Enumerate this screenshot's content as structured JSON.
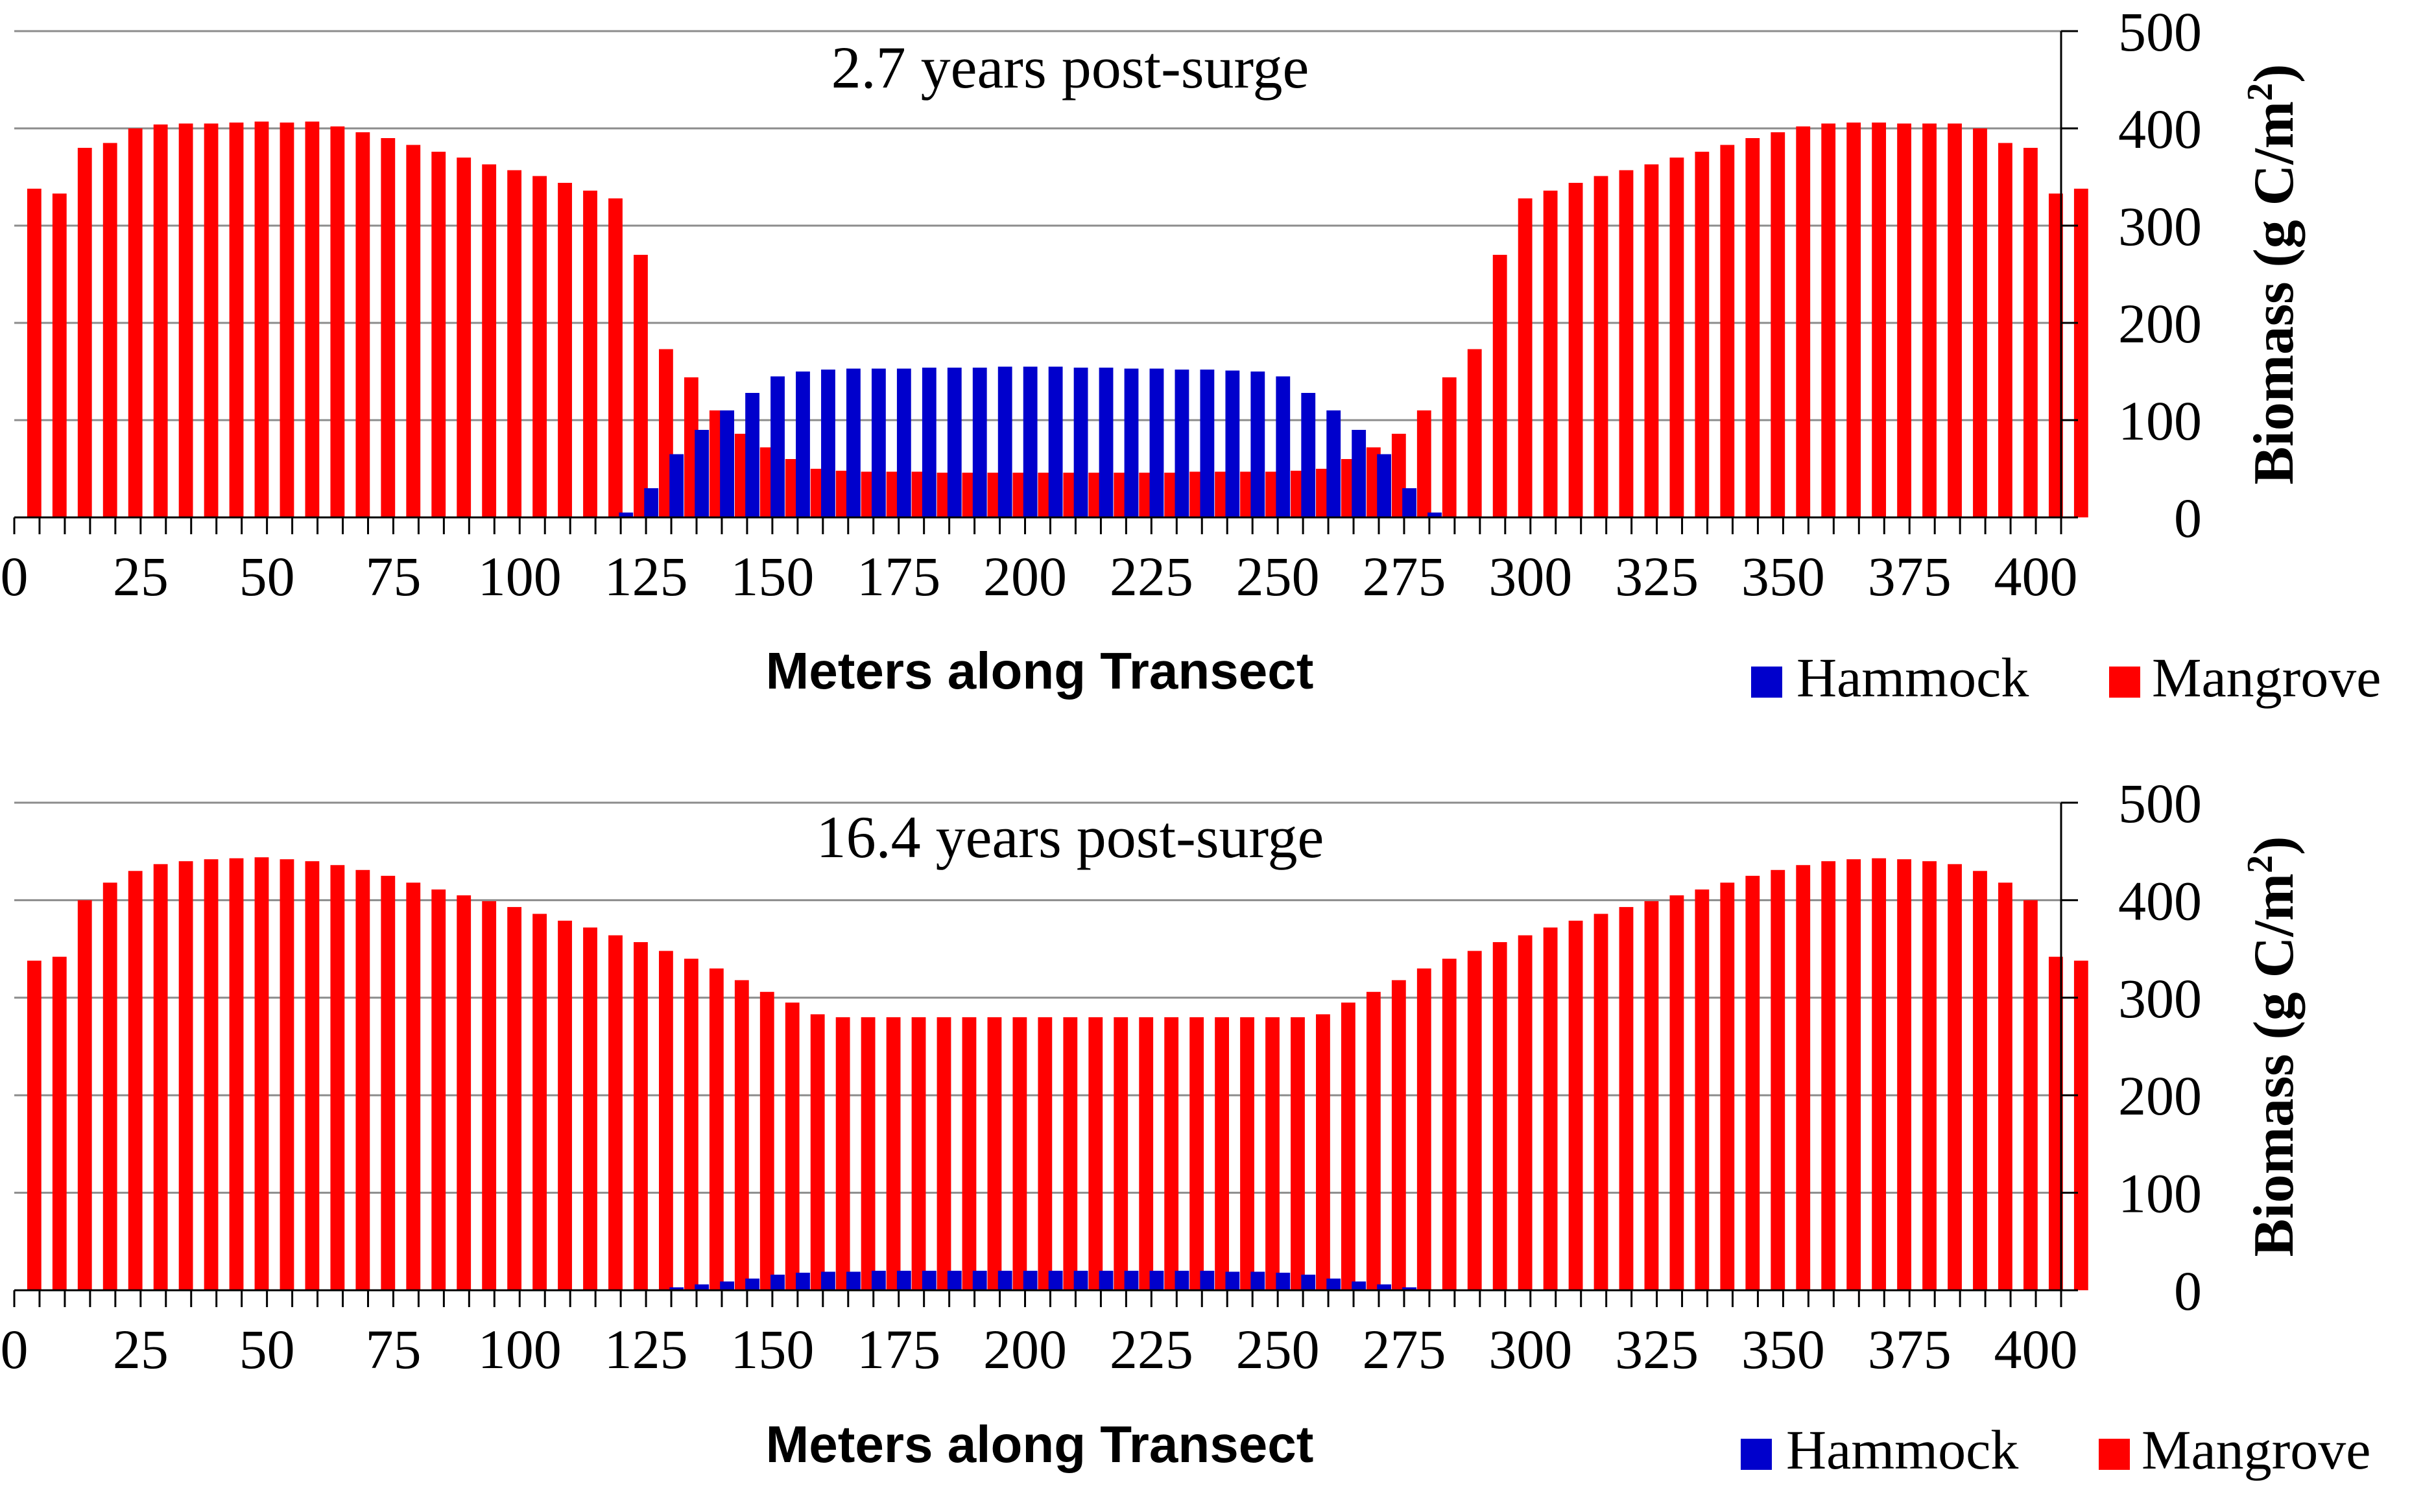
{
  "colors": {
    "hammock": "#0000CC",
    "mangrove": "#FF0000",
    "grid": "#8C8C8C",
    "axis": "#000000"
  },
  "chart_data": [
    {
      "type": "bar",
      "title": "2.7 years post-surge",
      "xlabel": "Meters along Transect",
      "ylabel": "Biomass (g C/m²)",
      "ylabel_main": "Biomass (g C/m",
      "ylabel_sup": "2",
      "ylabel_end": ")",
      "ylim": [
        0,
        500
      ],
      "y_ticks": [
        0,
        100,
        200,
        300,
        400,
        500
      ],
      "x_ticks": [
        0,
        25,
        50,
        75,
        100,
        125,
        150,
        175,
        200,
        225,
        250,
        275,
        300,
        325,
        350,
        375,
        400
      ],
      "xlim": [
        0,
        405
      ],
      "bar_spacing_m": 5,
      "x_start_m": 2.5,
      "grid": true,
      "legend_position": "bottom-right",
      "series": [
        {
          "name": "Hammock",
          "values": [
            0,
            0,
            0,
            0,
            0,
            0,
            0,
            0,
            0,
            0,
            0,
            0,
            0,
            0,
            0,
            0,
            0,
            0,
            0,
            0,
            0,
            0,
            0,
            0,
            5,
            30,
            65,
            90,
            110,
            128,
            145,
            150,
            152,
            153,
            153,
            153,
            154,
            154,
            154,
            155,
            155,
            155,
            154,
            154,
            153,
            153,
            152,
            152,
            151,
            150,
            145,
            128,
            110,
            90,
            65,
            30,
            5,
            0,
            0,
            0,
            0,
            0,
            0,
            0,
            0,
            0,
            0,
            0,
            0,
            0,
            0,
            0,
            0,
            0,
            0,
            0,
            0,
            0,
            0,
            0,
            0,
            0
          ]
        },
        {
          "name": "Mangrove",
          "values": [
            338,
            333,
            380,
            385,
            400,
            404,
            405,
            405,
            406,
            407,
            406,
            407,
            402,
            396,
            390,
            383,
            376,
            370,
            363,
            357,
            351,
            344,
            336,
            328,
            270,
            173,
            144,
            110,
            86,
            72,
            60,
            50,
            48,
            47,
            47,
            47,
            46,
            46,
            46,
            46,
            46,
            46,
            46,
            46,
            46,
            46,
            47,
            47,
            47,
            47,
            48,
            50,
            60,
            72,
            86,
            110,
            144,
            173,
            270,
            328,
            336,
            344,
            351,
            357,
            363,
            370,
            376,
            383,
            390,
            396,
            402,
            405,
            406,
            406,
            405,
            405,
            405,
            400,
            385,
            380,
            333,
            338
          ]
        }
      ]
    },
    {
      "type": "bar",
      "title": "16.4 years post-surge",
      "xlabel": "Meters along Transect",
      "ylabel": "Biomass (g C/m²)",
      "ylabel_main": "Biomass (g C/m",
      "ylabel_sup": "2",
      "ylabel_end": ")",
      "ylim": [
        0,
        500
      ],
      "y_ticks": [
        0,
        100,
        200,
        300,
        400,
        500
      ],
      "x_ticks": [
        0,
        25,
        50,
        75,
        100,
        125,
        150,
        175,
        200,
        225,
        250,
        275,
        300,
        325,
        350,
        375,
        400
      ],
      "xlim": [
        0,
        405
      ],
      "bar_spacing_m": 5,
      "x_start_m": 2.5,
      "grid": true,
      "legend_position": "bottom-right",
      "series": [
        {
          "name": "Hammock",
          "values": [
            0,
            0,
            0,
            0,
            0,
            0,
            0,
            0,
            0,
            0,
            0,
            0,
            0,
            0,
            0,
            0,
            0,
            0,
            0,
            0,
            0,
            0,
            0,
            0,
            0,
            0,
            3,
            6,
            9,
            12,
            16,
            18,
            19,
            19,
            20,
            20,
            20,
            20,
            20,
            20,
            20,
            20,
            20,
            20,
            20,
            20,
            20,
            20,
            19,
            19,
            18,
            16,
            12,
            9,
            6,
            3,
            0,
            0,
            0,
            0,
            0,
            0,
            0,
            0,
            0,
            0,
            0,
            0,
            0,
            0,
            0,
            0,
            0,
            0,
            0,
            0,
            0,
            0,
            0,
            0,
            0,
            0
          ]
        },
        {
          "name": "Mangrove",
          "values": [
            338,
            342,
            400,
            418,
            430,
            437,
            440,
            442,
            443,
            444,
            442,
            440,
            436,
            431,
            425,
            418,
            411,
            405,
            399,
            393,
            386,
            379,
            372,
            364,
            357,
            348,
            340,
            330,
            318,
            306,
            295,
            283,
            280,
            280,
            280,
            280,
            280,
            280,
            280,
            280,
            280,
            280,
            280,
            280,
            280,
            280,
            280,
            280,
            280,
            280,
            280,
            283,
            295,
            306,
            318,
            330,
            340,
            348,
            357,
            364,
            372,
            379,
            386,
            393,
            399,
            405,
            411,
            418,
            425,
            431,
            436,
            440,
            442,
            443,
            442,
            440,
            437,
            430,
            418,
            400,
            342,
            338
          ]
        }
      ]
    }
  ]
}
